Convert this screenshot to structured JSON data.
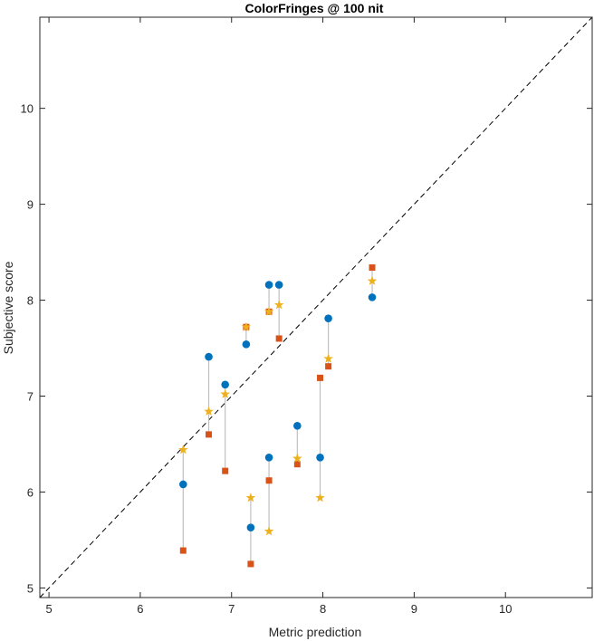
{
  "chart_data": {
    "type": "scatter",
    "title": "ColorFringes @ 100 nit",
    "xlabel": "Metric prediction",
    "ylabel": "Subjective score",
    "xlim": [
      4.9,
      10.95
    ],
    "ylim": [
      4.9,
      10.95
    ],
    "xticks": [
      "5",
      "6",
      "7",
      "8",
      "9",
      "10"
    ],
    "yticks": [
      "5",
      "6",
      "7",
      "8",
      "9",
      "10"
    ],
    "grid": false,
    "reference_line": "identity (dashed)",
    "colors": {
      "subjective": "#0072BD",
      "square": "#D95319",
      "star": "#EDB120",
      "connector": "#c0c0c0",
      "diagonal": "#000000"
    },
    "points": [
      {
        "x": 6.47,
        "subjective": 6.08,
        "square": 5.39,
        "star": 6.44
      },
      {
        "x": 6.75,
        "subjective": 7.41,
        "square": 6.6,
        "star": 6.84
      },
      {
        "x": 6.93,
        "subjective": 7.12,
        "square": 6.22,
        "star": 7.02
      },
      {
        "x": 7.16,
        "subjective": 7.54,
        "square": 7.72,
        "star": 7.72
      },
      {
        "x": 7.21,
        "subjective": 5.63,
        "square": 5.25,
        "star": 5.94
      },
      {
        "x": 7.41,
        "subjective": 6.36,
        "square": 6.12,
        "star": 5.59
      },
      {
        "x": 7.41,
        "subjective": 8.16,
        "square": 7.88,
        "star": 7.88
      },
      {
        "x": 7.52,
        "subjective": 8.16,
        "square": 7.6,
        "star": 7.95
      },
      {
        "x": 7.72,
        "subjective": 6.69,
        "square": 6.29,
        "star": 6.35
      },
      {
        "x": 7.97,
        "subjective": 6.36,
        "square": 7.19,
        "star": 5.94
      },
      {
        "x": 8.06,
        "subjective": 7.81,
        "square": 7.31,
        "star": 7.39
      },
      {
        "x": 8.54,
        "subjective": 8.03,
        "square": 8.34,
        "star": 8.2
      }
    ]
  }
}
